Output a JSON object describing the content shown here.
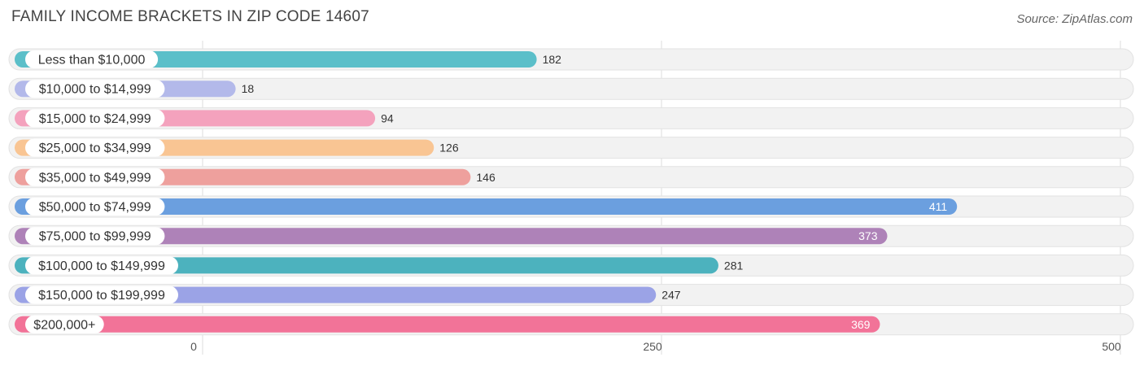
{
  "title": "FAMILY INCOME BRACKETS IN ZIP CODE 14607",
  "source": "Source: ZipAtlas.com",
  "chart_data": {
    "type": "bar",
    "orientation": "horizontal",
    "title": "FAMILY INCOME BRACKETS IN ZIP CODE 14607",
    "categories": [
      "Less than $10,000",
      "$10,000 to $14,999",
      "$15,000 to $24,999",
      "$25,000 to $34,999",
      "$35,000 to $49,999",
      "$50,000 to $74,999",
      "$75,000 to $99,999",
      "$100,000 to $149,999",
      "$150,000 to $199,999",
      "$200,000+"
    ],
    "values": [
      182,
      18,
      94,
      126,
      146,
      411,
      373,
      281,
      247,
      369
    ],
    "colors": [
      "#5bbfc9",
      "#b3b9ea",
      "#f4a2bd",
      "#f9c593",
      "#eea09d",
      "#6b9fdf",
      "#ae82b8",
      "#4cb2be",
      "#9ba3e6",
      "#f27398"
    ],
    "xlim": [
      0,
      500
    ],
    "xticks": [
      0,
      250,
      500
    ],
    "grid": true,
    "legend": "none"
  }
}
